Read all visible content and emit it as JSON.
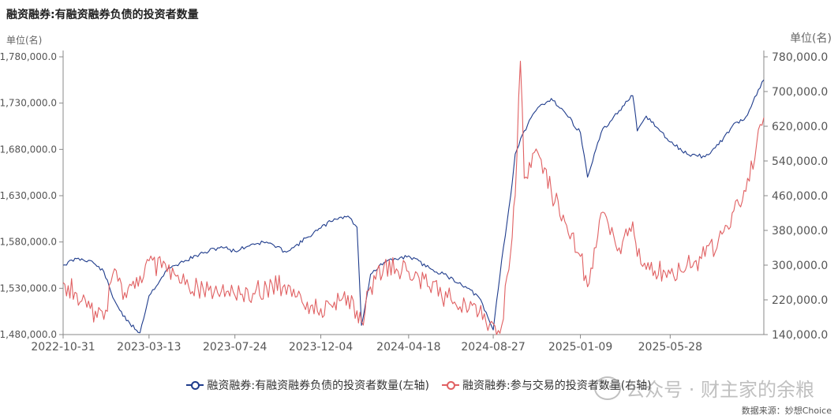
{
  "title": "融资融券:有融资融券负债的投资者数量",
  "unit_left": "单位(名)",
  "unit_right": "单位(名)",
  "watermark": "公众号 · 财主家的余粮",
  "source": "数据来源：妙想Choice",
  "colors": {
    "series_left": "#1f3c8c",
    "series_right": "#e06062",
    "axis": "#666666",
    "grid": "#dddddd"
  },
  "chart_data": {
    "type": "line",
    "x_tick_labels": [
      "2022-10-31",
      "2023-03-13",
      "2023-07-24",
      "2023-12-04",
      "2024-04-18",
      "2024-08-27",
      "2025-01-09",
      "2025-05-28"
    ],
    "x_range": [
      "2022-10-31",
      "2025-10-20"
    ],
    "y_left": {
      "min": 1480000,
      "max": 1780000,
      "ticks": [
        "1,480,000.0",
        "1,530,000.0",
        "1,580,000.0",
        "1,630,000.0",
        "1,680,000.0",
        "1,730,000.0",
        "1,780,000.0"
      ],
      "tick_values": [
        1480000,
        1530000,
        1580000,
        1630000,
        1680000,
        1730000,
        1780000
      ]
    },
    "y_right": {
      "min": 140000,
      "max": 780000,
      "ticks": [
        "140,000.0",
        "220,000.0",
        "300,000.0",
        "380,000.0",
        "460,000.0",
        "540,000.0",
        "620,000.0",
        "700,000.0",
        "780,000.0"
      ],
      "tick_values": [
        140000,
        220000,
        300000,
        380000,
        460000,
        540000,
        620000,
        700000,
        780000
      ]
    },
    "legend_position": "bottom",
    "series": [
      {
        "name": "融资融券:有融资融券负债的投资者数量(左轴)",
        "axis": "left",
        "color": "#1f3c8c",
        "x": [
          "2022-10-31",
          "2022-11-21",
          "2022-12-12",
          "2023-01-02",
          "2023-01-16",
          "2023-02-06",
          "2023-02-27",
          "2023-03-13",
          "2023-04-10",
          "2023-05-08",
          "2023-06-05",
          "2023-07-03",
          "2023-07-24",
          "2023-08-21",
          "2023-09-11",
          "2023-10-09",
          "2023-10-23",
          "2023-11-13",
          "2023-12-04",
          "2023-12-25",
          "2024-01-15",
          "2024-01-29",
          "2024-02-05",
          "2024-02-19",
          "2024-03-11",
          "2024-04-18",
          "2024-05-20",
          "2024-06-17",
          "2024-07-15",
          "2024-08-05",
          "2024-08-27",
          "2024-09-09",
          "2024-09-23",
          "2024-09-30",
          "2024-10-14",
          "2024-11-04",
          "2024-11-25",
          "2024-12-16",
          "2025-01-09",
          "2025-01-20",
          "2025-02-10",
          "2025-03-10",
          "2025-03-31",
          "2025-04-07",
          "2025-04-21",
          "2025-05-28",
          "2025-06-23",
          "2025-07-21",
          "2025-08-11",
          "2025-09-01",
          "2025-09-22",
          "2025-10-20"
        ],
        "y": [
          1555000,
          1562000,
          1560000,
          1548000,
          1520000,
          1495000,
          1482000,
          1522000,
          1550000,
          1560000,
          1568000,
          1575000,
          1570000,
          1578000,
          1580000,
          1570000,
          1574000,
          1585000,
          1595000,
          1605000,
          1608000,
          1596000,
          1490000,
          1545000,
          1558000,
          1565000,
          1552000,
          1543000,
          1532000,
          1520000,
          1485000,
          1560000,
          1630000,
          1675000,
          1700000,
          1725000,
          1735000,
          1720000,
          1698000,
          1650000,
          1698000,
          1722000,
          1738000,
          1700000,
          1716000,
          1688000,
          1675000,
          1672000,
          1685000,
          1705000,
          1715000,
          1755000
        ]
      },
      {
        "name": "融资融券:参与交易的投资者数量(右轴)",
        "axis": "right",
        "color": "#e06062",
        "x": [
          "2022-10-31",
          "2022-11-21",
          "2022-12-12",
          "2023-01-02",
          "2023-01-16",
          "2023-02-06",
          "2023-02-27",
          "2023-03-13",
          "2023-04-10",
          "2023-05-08",
          "2023-06-05",
          "2023-07-03",
          "2023-07-24",
          "2023-08-21",
          "2023-09-11",
          "2023-10-09",
          "2023-10-23",
          "2023-11-13",
          "2023-12-04",
          "2023-12-25",
          "2024-01-15",
          "2024-01-29",
          "2024-02-05",
          "2024-02-19",
          "2024-03-11",
          "2024-04-18",
          "2024-05-20",
          "2024-06-17",
          "2024-07-15",
          "2024-08-05",
          "2024-08-27",
          "2024-09-09",
          "2024-09-23",
          "2024-09-30",
          "2024-10-08",
          "2024-10-14",
          "2024-11-04",
          "2024-11-25",
          "2024-12-16",
          "2025-01-09",
          "2025-01-20",
          "2025-02-10",
          "2025-03-10",
          "2025-03-31",
          "2025-04-07",
          "2025-04-21",
          "2025-05-28",
          "2025-06-23",
          "2025-07-21",
          "2025-08-11",
          "2025-09-01",
          "2025-09-22",
          "2025-10-20"
        ],
        "y": [
          260000,
          235000,
          200000,
          175000,
          280000,
          225000,
          275000,
          310000,
          285000,
          255000,
          245000,
          240000,
          230000,
          235000,
          250000,
          255000,
          245000,
          215000,
          200000,
          215000,
          230000,
          195000,
          170000,
          250000,
          300000,
          285000,
          250000,
          225000,
          210000,
          190000,
          165000,
          160000,
          330000,
          460000,
          770000,
          500000,
          560000,
          470000,
          400000,
          320000,
          250000,
          420000,
          340000,
          400000,
          320000,
          290000,
          280000,
          300000,
          320000,
          360000,
          420000,
          470000,
          640000
        ]
      }
    ]
  },
  "legend": [
    {
      "label": "融资融券:有融资融券负债的投资者数量(左轴)",
      "color": "#1f3c8c"
    },
    {
      "label": "融资融券:参与交易的投资者数量(右轴)",
      "color": "#e06062"
    }
  ]
}
